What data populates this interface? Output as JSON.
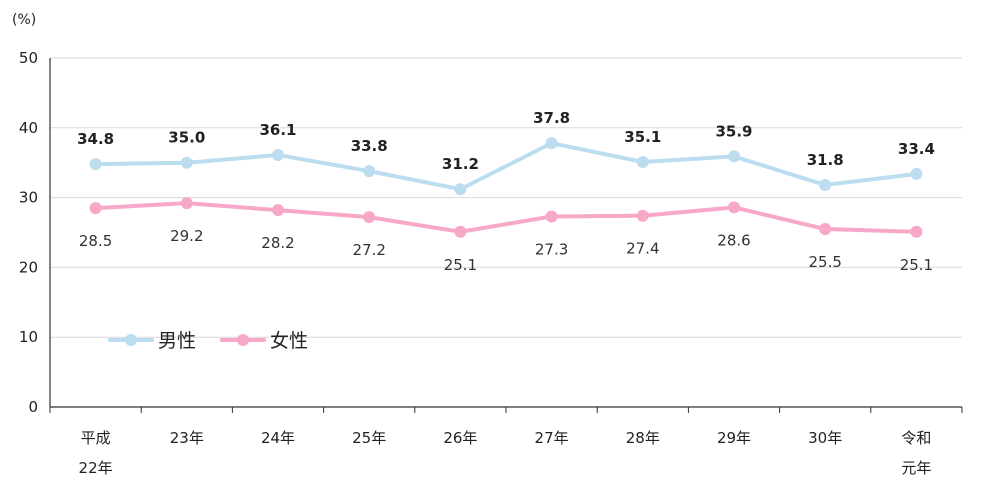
{
  "chart_data": {
    "type": "line",
    "unit_label": "(%)",
    "categories": [
      [
        "平成",
        "22年"
      ],
      [
        "23年"
      ],
      [
        "24年"
      ],
      [
        "25年"
      ],
      [
        "26年"
      ],
      [
        "27年"
      ],
      [
        "28年"
      ],
      [
        "29年"
      ],
      [
        "30年"
      ],
      [
        "令和",
        "元年"
      ]
    ],
    "ylim": [
      0,
      50
    ],
    "yticks": [
      0,
      10,
      20,
      30,
      40,
      50
    ],
    "grid": true,
    "legend_position": "lower-left",
    "series": [
      {
        "name": "男性",
        "color": "#bcdcf0",
        "values": [
          34.8,
          35.0,
          36.1,
          33.8,
          31.2,
          37.8,
          35.1,
          35.9,
          31.8,
          33.4
        ],
        "labels": [
          "34.8",
          "35.0",
          "36.1",
          "33.8",
          "31.2",
          "37.8",
          "35.1",
          "35.9",
          "31.8",
          "33.4"
        ],
        "label_side": "above"
      },
      {
        "name": "女性",
        "color": "#f7a8c8",
        "values": [
          28.5,
          29.2,
          28.2,
          27.2,
          25.1,
          27.3,
          27.4,
          28.6,
          25.5,
          25.1
        ],
        "labels": [
          "28.5",
          "29.2",
          "28.2",
          "27.2",
          "25.1",
          "27.3",
          "27.4",
          "28.6",
          "25.5",
          "25.1"
        ],
        "label_side": "below"
      }
    ]
  }
}
